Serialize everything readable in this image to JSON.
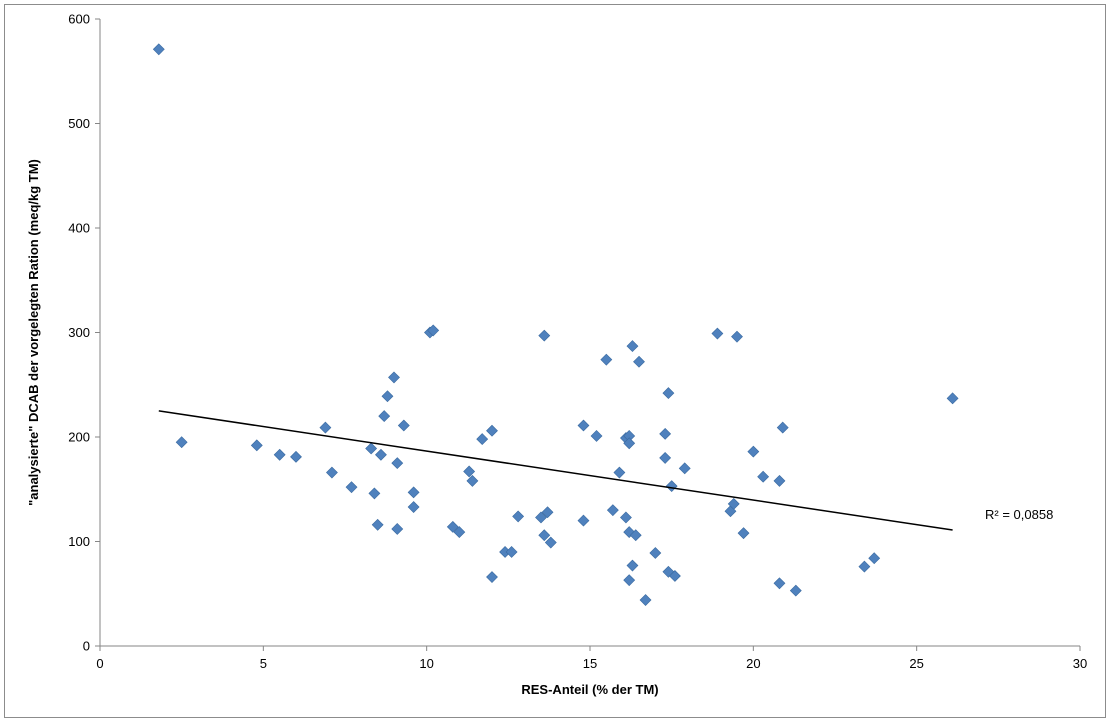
{
  "chart_data": {
    "type": "scatter",
    "xlabel": "RES-Anteil (% der TM)",
    "ylabel": "\"analysierte\" DCAB der vorgelegten Ration (meq/kg TM)",
    "xlim": [
      0,
      30
    ],
    "ylim": [
      0,
      600
    ],
    "x_ticks": [
      "0",
      "5",
      "10",
      "15",
      "20",
      "25",
      "30"
    ],
    "y_ticks": [
      "0",
      "100",
      "200",
      "300",
      "400",
      "500",
      "600"
    ],
    "grid": false,
    "legend": "none",
    "marker": "diamond",
    "marker_color": "#4f81bd",
    "trendline": {
      "x_start": 1.8,
      "y_start": 225,
      "x_end": 26.1,
      "y_end": 111,
      "color": "#000000"
    },
    "annotation": "R² = 0,0858",
    "points": [
      {
        "x": 1.8,
        "y": 571
      },
      {
        "x": 2.5,
        "y": 195
      },
      {
        "x": 4.8,
        "y": 192
      },
      {
        "x": 5.5,
        "y": 183
      },
      {
        "x": 6.0,
        "y": 181
      },
      {
        "x": 6.9,
        "y": 209
      },
      {
        "x": 7.1,
        "y": 166
      },
      {
        "x": 7.7,
        "y": 152
      },
      {
        "x": 8.3,
        "y": 189
      },
      {
        "x": 8.4,
        "y": 146
      },
      {
        "x": 8.5,
        "y": 116
      },
      {
        "x": 8.6,
        "y": 183
      },
      {
        "x": 8.7,
        "y": 220
      },
      {
        "x": 8.8,
        "y": 239
      },
      {
        "x": 9.0,
        "y": 257
      },
      {
        "x": 9.1,
        "y": 175
      },
      {
        "x": 9.1,
        "y": 112
      },
      {
        "x": 9.3,
        "y": 211
      },
      {
        "x": 9.6,
        "y": 147
      },
      {
        "x": 9.6,
        "y": 133
      },
      {
        "x": 10.1,
        "y": 300
      },
      {
        "x": 10.2,
        "y": 302
      },
      {
        "x": 10.8,
        "y": 114
      },
      {
        "x": 11.0,
        "y": 109
      },
      {
        "x": 11.3,
        "y": 167
      },
      {
        "x": 11.4,
        "y": 158
      },
      {
        "x": 11.7,
        "y": 198
      },
      {
        "x": 12.0,
        "y": 206
      },
      {
        "x": 12.0,
        "y": 66
      },
      {
        "x": 12.4,
        "y": 90
      },
      {
        "x": 12.6,
        "y": 90
      },
      {
        "x": 12.8,
        "y": 124
      },
      {
        "x": 13.5,
        "y": 123
      },
      {
        "x": 13.6,
        "y": 297
      },
      {
        "x": 13.6,
        "y": 106
      },
      {
        "x": 13.7,
        "y": 128
      },
      {
        "x": 13.8,
        "y": 99
      },
      {
        "x": 14.8,
        "y": 211
      },
      {
        "x": 14.8,
        "y": 120
      },
      {
        "x": 15.2,
        "y": 201
      },
      {
        "x": 15.5,
        "y": 274
      },
      {
        "x": 15.7,
        "y": 130
      },
      {
        "x": 15.9,
        "y": 166
      },
      {
        "x": 16.1,
        "y": 199
      },
      {
        "x": 16.1,
        "y": 123
      },
      {
        "x": 16.2,
        "y": 201
      },
      {
        "x": 16.2,
        "y": 194
      },
      {
        "x": 16.2,
        "y": 109
      },
      {
        "x": 16.2,
        "y": 63
      },
      {
        "x": 16.3,
        "y": 287
      },
      {
        "x": 16.3,
        "y": 77
      },
      {
        "x": 16.4,
        "y": 106
      },
      {
        "x": 16.5,
        "y": 272
      },
      {
        "x": 16.7,
        "y": 44
      },
      {
        "x": 17.0,
        "y": 89
      },
      {
        "x": 17.3,
        "y": 203
      },
      {
        "x": 17.3,
        "y": 180
      },
      {
        "x": 17.4,
        "y": 242
      },
      {
        "x": 17.4,
        "y": 71
      },
      {
        "x": 17.5,
        "y": 153
      },
      {
        "x": 17.6,
        "y": 67
      },
      {
        "x": 17.9,
        "y": 170
      },
      {
        "x": 18.9,
        "y": 299
      },
      {
        "x": 19.3,
        "y": 129
      },
      {
        "x": 19.4,
        "y": 136
      },
      {
        "x": 19.5,
        "y": 296
      },
      {
        "x": 19.7,
        "y": 108
      },
      {
        "x": 20.0,
        "y": 186
      },
      {
        "x": 20.3,
        "y": 162
      },
      {
        "x": 20.8,
        "y": 158
      },
      {
        "x": 20.8,
        "y": 60
      },
      {
        "x": 20.9,
        "y": 209
      },
      {
        "x": 21.3,
        "y": 53
      },
      {
        "x": 23.4,
        "y": 76
      },
      {
        "x": 23.7,
        "y": 84
      },
      {
        "x": 26.1,
        "y": 237
      }
    ]
  }
}
